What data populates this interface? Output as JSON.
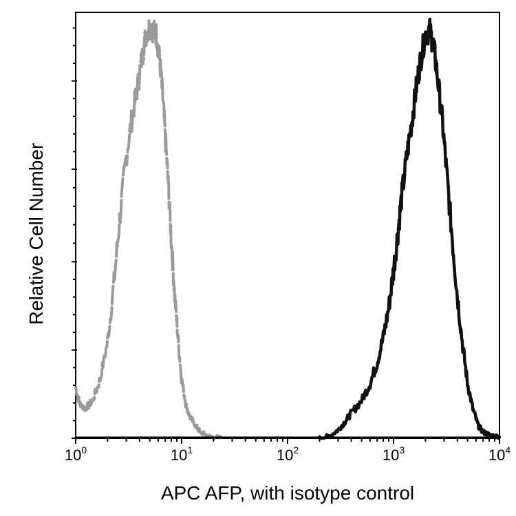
{
  "chart_data": {
    "type": "line",
    "title": "",
    "xlabel": "APC AFP, with isotype control",
    "ylabel": "Relative Cell Number",
    "x_scale": "log",
    "xlim": [
      1,
      10000
    ],
    "ylim": [
      0,
      100
    ],
    "grid": false,
    "x_ticks": [
      {
        "base": "10",
        "exp": "0",
        "value": 1
      },
      {
        "base": "10",
        "exp": "1",
        "value": 10
      },
      {
        "base": "10",
        "exp": "2",
        "value": 100
      },
      {
        "base": "10",
        "exp": "3",
        "value": 1000
      },
      {
        "base": "10",
        "exp": "4",
        "value": 10000
      }
    ],
    "y_major_ticks": [
      0,
      21,
      42,
      64,
      85
    ],
    "series": [
      {
        "color": "#9a9a9a",
        "style": "gray dashed outline",
        "x": [
          1.0,
          1.1,
          1.25,
          1.45,
          1.7,
          2.0,
          2.3,
          2.6,
          3.0,
          3.4,
          3.8,
          4.2,
          4.6,
          5.0,
          5.4,
          5.8,
          6.2,
          6.6,
          7.0,
          7.5,
          8.0,
          8.6,
          9.3,
          10.0,
          11.0,
          12.0,
          13.5,
          15.0,
          17.0,
          20.0,
          25.0
        ],
        "y": [
          12,
          8,
          7,
          9,
          14,
          23,
          37,
          52,
          67,
          76,
          83,
          90,
          96,
          98,
          97,
          96,
          90,
          82,
          72,
          60,
          47,
          34,
          23,
          14,
          8,
          5,
          3,
          1.5,
          0.8,
          0.3,
          0
        ]
      },
      {
        "color": "#111111",
        "style": "black solid outline",
        "x": [
          200,
          250,
          300,
          350,
          400,
          500,
          600,
          700,
          800,
          900,
          1000,
          1100,
          1200,
          1350,
          1500,
          1650,
          1800,
          2000,
          2200,
          2400,
          2600,
          2900,
          3200,
          3600,
          4000,
          4500,
          5000,
          5600,
          6300,
          7000,
          8000,
          10000
        ],
        "y": [
          0,
          0.5,
          2,
          4,
          6,
          9,
          13,
          18,
          24,
          31,
          40,
          49,
          58,
          68,
          76,
          84,
          90,
          96,
          97,
          93,
          86,
          75,
          62,
          47,
          34,
          22,
          13,
          7,
          3,
          1.5,
          0.8,
          0.3
        ]
      }
    ]
  }
}
